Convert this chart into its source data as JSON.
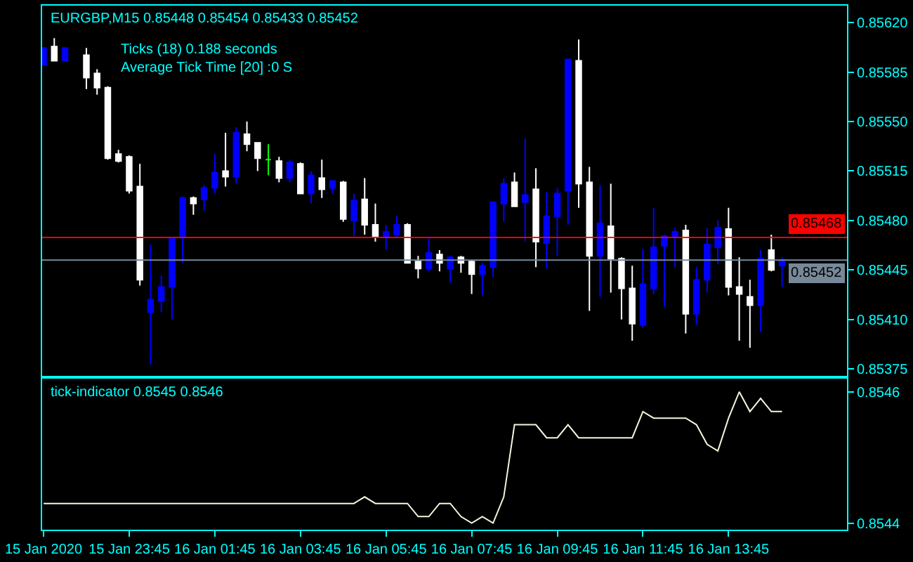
{
  "chart_data": [
    {
      "type": "candlestick",
      "title": "EURGBP,M15 0.85448 0.85454 0.85433 0.85452",
      "annotations": [
        "Ticks (18) 0.188 seconds",
        "Average Tick Time [20] :0 S"
      ],
      "x": [
        "2020-01-15T21:45",
        "2020-01-15T22:00",
        "2020-01-15T22:15",
        "2020-01-15T22:45",
        "2020-01-15T23:00",
        "2020-01-15T23:15",
        "2020-01-15T23:30",
        "2020-01-15T23:45",
        "2020-01-16T00:00",
        "2020-01-16T00:15",
        "2020-01-16T00:30",
        "2020-01-16T00:45",
        "2020-01-16T01:00",
        "2020-01-16T01:15",
        "2020-01-16T01:30",
        "2020-01-16T01:45",
        "2020-01-16T02:00",
        "2020-01-16T02:15",
        "2020-01-16T02:30",
        "2020-01-16T02:45",
        "2020-01-16T03:00",
        "2020-01-16T03:15",
        "2020-01-16T03:30",
        "2020-01-16T03:45",
        "2020-01-16T04:00",
        "2020-01-16T04:15",
        "2020-01-16T04:30",
        "2020-01-16T04:45",
        "2020-01-16T05:00",
        "2020-01-16T05:15",
        "2020-01-16T05:30",
        "2020-01-16T05:45",
        "2020-01-16T06:00",
        "2020-01-16T06:15",
        "2020-01-16T06:30",
        "2020-01-16T06:45",
        "2020-01-16T07:00",
        "2020-01-16T07:15",
        "2020-01-16T07:30",
        "2020-01-16T07:45",
        "2020-01-16T08:00",
        "2020-01-16T08:15",
        "2020-01-16T08:30",
        "2020-01-16T08:45",
        "2020-01-16T09:00",
        "2020-01-16T09:15",
        "2020-01-16T09:30",
        "2020-01-16T09:45",
        "2020-01-16T10:00",
        "2020-01-16T10:15",
        "2020-01-16T10:30",
        "2020-01-16T10:45",
        "2020-01-16T11:00",
        "2020-01-16T11:15",
        "2020-01-16T11:30",
        "2020-01-16T11:45",
        "2020-01-16T12:00",
        "2020-01-16T12:15",
        "2020-01-16T12:30",
        "2020-01-16T12:45",
        "2020-01-16T13:00",
        "2020-01-16T13:15",
        "2020-01-16T13:30",
        "2020-01-16T13:45",
        "2020-01-16T14:00",
        "2020-01-16T14:15",
        "2020-01-16T14:30",
        "2020-01-16T14:45",
        "2020-01-16T15:00"
      ],
      "ohlc": [
        [
          0.8559,
          0.85602,
          0.8559,
          0.85602
        ],
        [
          0.85603,
          0.85609,
          0.85593,
          0.85593
        ],
        [
          0.85593,
          0.85602,
          0.85593,
          0.85602
        ],
        [
          0.85597,
          0.85602,
          0.85573,
          0.85581
        ],
        [
          0.85584,
          0.85587,
          0.85569,
          0.85574
        ],
        [
          0.85574,
          0.85575,
          0.85523,
          0.85524
        ],
        [
          0.85527,
          0.8553,
          0.85521,
          0.85522
        ],
        [
          0.85525,
          0.85526,
          0.85499,
          0.85501
        ],
        [
          0.85504,
          0.8552,
          0.85434,
          0.85438
        ],
        [
          0.85415,
          0.85463,
          0.85378,
          0.85424
        ],
        [
          0.85423,
          0.85441,
          0.85415,
          0.85433
        ],
        [
          0.85433,
          0.85468,
          0.8541,
          0.85467
        ],
        [
          0.85468,
          0.85497,
          0.8545,
          0.85496
        ],
        [
          0.85496,
          0.85497,
          0.85484,
          0.85492
        ],
        [
          0.85495,
          0.85505,
          0.85487,
          0.85503
        ],
        [
          0.85503,
          0.85527,
          0.85499,
          0.85514
        ],
        [
          0.85515,
          0.85542,
          0.85504,
          0.85511
        ],
        [
          0.85511,
          0.85546,
          0.85506,
          0.85542
        ],
        [
          0.85541,
          0.8555,
          0.85529,
          0.85534
        ],
        [
          0.85535,
          0.85535,
          0.85515,
          0.85524
        ],
        [
          0.85523,
          0.85534,
          0.85512,
          0.85523
        ],
        [
          0.85522,
          0.85525,
          0.85507,
          0.8551
        ],
        [
          0.8551,
          0.85523,
          0.85507,
          0.85521
        ],
        [
          0.8552,
          0.85521,
          0.85499,
          0.85499
        ],
        [
          0.85499,
          0.85515,
          0.85492,
          0.85512
        ],
        [
          0.8551,
          0.85523,
          0.85496,
          0.85502
        ],
        [
          0.85503,
          0.85508,
          0.85499,
          0.85508
        ],
        [
          0.85507,
          0.85508,
          0.85479,
          0.85481
        ],
        [
          0.8548,
          0.85499,
          0.85469,
          0.85494
        ],
        [
          0.85495,
          0.8551,
          0.8547,
          0.85477
        ],
        [
          0.85477,
          0.85492,
          0.85465,
          0.85469
        ],
        [
          0.85468,
          0.85477,
          0.85459,
          0.85472
        ],
        [
          0.8547,
          0.85483,
          0.85468,
          0.85477
        ],
        [
          0.85477,
          0.85478,
          0.8545,
          0.8545
        ],
        [
          0.85451,
          0.85455,
          0.85439,
          0.85446
        ],
        [
          0.85446,
          0.85468,
          0.85444,
          0.85457
        ],
        [
          0.85456,
          0.85459,
          0.85444,
          0.8545
        ],
        [
          0.85446,
          0.85455,
          0.85436,
          0.85454
        ],
        [
          0.85454,
          0.85455,
          0.85443,
          0.8545
        ],
        [
          0.85451,
          0.85452,
          0.85428,
          0.85442
        ],
        [
          0.85442,
          0.8545,
          0.85427,
          0.85448
        ],
        [
          0.85447,
          0.85493,
          0.8544,
          0.85493
        ],
        [
          0.85492,
          0.8551,
          0.85479,
          0.85506
        ],
        [
          0.85507,
          0.85514,
          0.8549,
          0.8549
        ],
        [
          0.85493,
          0.85538,
          0.85465,
          0.85498
        ],
        [
          0.85502,
          0.85517,
          0.85447,
          0.85465
        ],
        [
          0.85464,
          0.855,
          0.85446,
          0.85483
        ],
        [
          0.85483,
          0.85503,
          0.85455,
          0.85499
        ],
        [
          0.85501,
          0.85594,
          0.85477,
          0.85594
        ],
        [
          0.85593,
          0.85608,
          0.85489,
          0.85506
        ],
        [
          0.85507,
          0.85518,
          0.85416,
          0.85455
        ],
        [
          0.85455,
          0.85505,
          0.85426,
          0.85478
        ],
        [
          0.85476,
          0.85506,
          0.85429,
          0.85453
        ],
        [
          0.85453,
          0.85454,
          0.8541,
          0.85432
        ],
        [
          0.85432,
          0.85448,
          0.85395,
          0.85407
        ],
        [
          0.85406,
          0.8546,
          0.85404,
          0.85435
        ],
        [
          0.85432,
          0.85489,
          0.85428,
          0.85461
        ],
        [
          0.85462,
          0.8547,
          0.85419,
          0.85469
        ],
        [
          0.85468,
          0.85475,
          0.85447,
          0.85472
        ],
        [
          0.85473,
          0.85477,
          0.854,
          0.85414
        ],
        [
          0.85414,
          0.85447,
          0.85406,
          0.85438
        ],
        [
          0.85438,
          0.85475,
          0.85429,
          0.85463
        ],
        [
          0.85461,
          0.8548,
          0.85449,
          0.85475
        ],
        [
          0.85474,
          0.85489,
          0.85427,
          0.85433
        ],
        [
          0.85433,
          0.85454,
          0.85395,
          0.85428
        ],
        [
          0.85426,
          0.85438,
          0.8539,
          0.8542
        ],
        [
          0.8542,
          0.85459,
          0.85401,
          0.85453
        ],
        [
          0.85459,
          0.8547,
          0.85444,
          0.85445
        ],
        [
          0.85448,
          0.85454,
          0.85433,
          0.85452
        ]
      ],
      "colors": [
        "#0000ff",
        "#ffffff",
        "#0000ff",
        "#ffffff",
        "#ffffff",
        "#ffffff",
        "#ffffff",
        "#ffffff",
        "#ffffff",
        "#0000ff",
        "#0000ff",
        "#0000ff",
        "#0000ff",
        "#ffffff",
        "#0000ff",
        "#0000ff",
        "#ffffff",
        "#0000ff",
        "#ffffff",
        "#ffffff",
        "#00ff00",
        "#ffffff",
        "#0000ff",
        "#ffffff",
        "#0000ff",
        "#ffffff",
        "#0000ff",
        "#ffffff",
        "#0000ff",
        "#ffffff",
        "#ffffff",
        "#0000ff",
        "#0000ff",
        "#ffffff",
        "#ffffff",
        "#0000ff",
        "#ffffff",
        "#0000ff",
        "#ffffff",
        "#ffffff",
        "#0000ff",
        "#0000ff",
        "#0000ff",
        "#ffffff",
        "#0000ff",
        "#ffffff",
        "#0000ff",
        "#0000ff",
        "#0000ff",
        "#ffffff",
        "#ffffff",
        "#0000ff",
        "#ffffff",
        "#ffffff",
        "#ffffff",
        "#0000ff",
        "#0000ff",
        "#0000ff",
        "#0000ff",
        "#ffffff",
        "#0000ff",
        "#0000ff",
        "#0000ff",
        "#ffffff",
        "#ffffff",
        "#ffffff",
        "#0000ff",
        "#ffffff",
        "#0000ff"
      ],
      "xlim": [
        "2020-01-15T21:43",
        "2020-01-16T16:31"
      ],
      "ylim": [
        0.8537,
        0.85632
      ],
      "yticks": [
        {
          "value": 0.8562,
          "label": "0.85620"
        },
        0.85585,
        {
          "value": 0.8555,
          "label": "0.85550"
        },
        0.85515,
        {
          "value": 0.8548,
          "label": "0.85480"
        },
        0.85445,
        {
          "value": 0.8541,
          "label": "0.85410"
        },
        0.85375
      ],
      "ref_lines": [
        {
          "axis": "y",
          "value": 0.85468,
          "label": "0.85468",
          "color": "#ff0000"
        },
        {
          "axis": "y",
          "value": 0.85452,
          "label": "0.85452",
          "color": "#778899"
        }
      ],
      "tick_labels": "y"
    },
    {
      "type": "line",
      "title": "tick-indicator 0.8545 0.8546",
      "x": [
        "2020-01-15T21:45",
        "2020-01-15T22:00",
        "2020-01-15T22:15",
        "2020-01-15T22:30",
        "2020-01-15T22:45",
        "2020-01-15T23:00",
        "2020-01-15T23:15",
        "2020-01-15T23:30",
        "2020-01-15T23:45",
        "2020-01-16T00:00",
        "2020-01-16T00:15",
        "2020-01-16T00:30",
        "2020-01-16T00:45",
        "2020-01-16T01:00",
        "2020-01-16T01:15",
        "2020-01-16T01:30",
        "2020-01-16T01:45",
        "2020-01-16T02:00",
        "2020-01-16T02:15",
        "2020-01-16T02:30",
        "2020-01-16T02:45",
        "2020-01-16T03:00",
        "2020-01-16T03:15",
        "2020-01-16T03:30",
        "2020-01-16T03:45",
        "2020-01-16T04:00",
        "2020-01-16T04:15",
        "2020-01-16T04:30",
        "2020-01-16T04:45",
        "2020-01-16T05:00",
        "2020-01-16T05:15",
        "2020-01-16T05:30",
        "2020-01-16T05:45",
        "2020-01-16T06:00",
        "2020-01-16T06:15",
        "2020-01-16T06:30",
        "2020-01-16T06:45",
        "2020-01-16T07:00",
        "2020-01-16T07:15",
        "2020-01-16T07:30",
        "2020-01-16T07:45",
        "2020-01-16T08:00",
        "2020-01-16T08:15",
        "2020-01-16T08:30",
        "2020-01-16T08:45",
        "2020-01-16T09:00",
        "2020-01-16T09:15",
        "2020-01-16T09:30",
        "2020-01-16T09:45",
        "2020-01-16T10:00",
        "2020-01-16T10:15",
        "2020-01-16T10:30",
        "2020-01-16T10:45",
        "2020-01-16T11:00",
        "2020-01-16T11:15",
        "2020-01-16T11:30",
        "2020-01-16T11:45",
        "2020-01-16T12:00",
        "2020-01-16T12:15",
        "2020-01-16T12:30",
        "2020-01-16T12:45",
        "2020-01-16T13:00",
        "2020-01-16T13:15",
        "2020-01-16T13:30",
        "2020-01-16T13:45",
        "2020-01-16T14:00",
        "2020-01-16T14:15",
        "2020-01-16T14:30",
        "2020-01-16T14:45",
        "2020-01-16T15:00"
      ],
      "series": [
        {
          "color": "#f5f5dc",
          "values": [
            0.85443,
            0.85443,
            0.85443,
            0.85443,
            0.85443,
            0.85443,
            0.85443,
            0.85443,
            0.85443,
            0.85443,
            0.85443,
            0.85443,
            0.85443,
            0.85443,
            0.85443,
            0.85443,
            0.85443,
            0.85443,
            0.85443,
            0.85443,
            0.85443,
            0.85443,
            0.85443,
            0.85443,
            0.85443,
            0.85443,
            0.85443,
            0.85443,
            0.85443,
            0.85443,
            0.85444,
            0.85443,
            0.85443,
            0.85443,
            0.85443,
            0.85441,
            0.85441,
            0.85443,
            0.85443,
            0.85441,
            0.8544,
            0.85441,
            0.8544,
            0.85444,
            0.85455,
            0.85455,
            0.85455,
            0.85453,
            0.85453,
            0.85455,
            0.85453,
            0.85453,
            0.85453,
            0.85453,
            0.85453,
            0.85453,
            0.85457,
            0.85456,
            0.85456,
            0.85456,
            0.85456,
            0.85455,
            0.85452,
            0.85451,
            0.85456,
            0.8546,
            0.85457,
            0.85459,
            0.85457,
            0.85457
          ]
        }
      ],
      "xlim": [
        "2020-01-15T21:43",
        "2020-01-16T16:31"
      ],
      "xticks": [
        {
          "value": "2020-01-15T21:45",
          "label": "15 Jan 2020"
        },
        {
          "value": "2020-01-15T23:45",
          "label": "15 Jan 23:45"
        },
        {
          "value": "2020-01-16T01:45",
          "label": "16 Jan 01:45"
        },
        {
          "value": "2020-01-16T03:45",
          "label": "16 Jan 03:45"
        },
        {
          "value": "2020-01-16T05:45",
          "label": "16 Jan 05:45"
        },
        {
          "value": "2020-01-16T07:45",
          "label": "16 Jan 07:45"
        },
        {
          "value": "2020-01-16T09:45",
          "label": "16 Jan 09:45"
        },
        {
          "value": "2020-01-16T11:45",
          "label": "16 Jan 11:45"
        },
        {
          "value": "2020-01-16T13:45",
          "label": "16 Jan 13:45"
        }
      ],
      "ylim": [
        0.85439,
        0.85462
      ],
      "yticks": [
        0.8544,
        0.8546
      ]
    }
  ]
}
